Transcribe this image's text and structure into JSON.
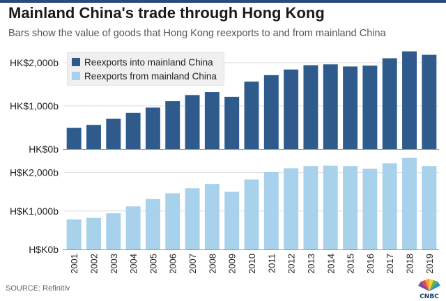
{
  "title": "Mainland China's trade through Hong Kong",
  "subtitle": "Bars show the value of goods that Hong Kong reexports to and from mainland China",
  "source": "SOURCE: Refinitiv",
  "logo_text": "CNBC",
  "legend": {
    "into_label": "Reexports into mainland China",
    "from_label": "Reexports from mainland China"
  },
  "colors": {
    "into": "#2f5b8c",
    "from": "#a8d1ec",
    "axis": "#999999",
    "gridline": "#dddddd"
  },
  "chart_data": [
    {
      "type": "bar",
      "name": "Reexports into mainland China",
      "categories": [
        "2001",
        "2002",
        "2003",
        "2004",
        "2005",
        "2006",
        "2007",
        "2008",
        "2009",
        "2010",
        "2011",
        "2012",
        "2013",
        "2014",
        "2015",
        "2016",
        "2017",
        "2018",
        "2019"
      ],
      "values": [
        490,
        560,
        700,
        840,
        960,
        1110,
        1250,
        1320,
        1210,
        1560,
        1710,
        1840,
        1940,
        1960,
        1910,
        1930,
        2100,
        2260,
        2180
      ],
      "ylim": [
        0,
        2400
      ],
      "yticks": [
        0,
        1000,
        2000
      ],
      "ytick_labels": [
        "HK$0b",
        "HK$1,000b",
        "HK$2,000b"
      ]
    },
    {
      "type": "bar",
      "name": "Reexports from mainland China",
      "categories": [
        "2001",
        "2002",
        "2003",
        "2004",
        "2005",
        "2006",
        "2007",
        "2008",
        "2009",
        "2010",
        "2011",
        "2012",
        "2013",
        "2014",
        "2015",
        "2016",
        "2017",
        "2018",
        "2019"
      ],
      "values": [
        780,
        820,
        940,
        1120,
        1310,
        1460,
        1590,
        1700,
        1500,
        1820,
        2010,
        2110,
        2170,
        2180,
        2170,
        2100,
        2240,
        2380,
        2170
      ],
      "ylim": [
        0,
        2500
      ],
      "yticks": [
        0,
        1000,
        2000
      ],
      "ytick_labels": [
        "H$K0b",
        "H$K1,000b",
        "H$K2,000b"
      ]
    }
  ]
}
